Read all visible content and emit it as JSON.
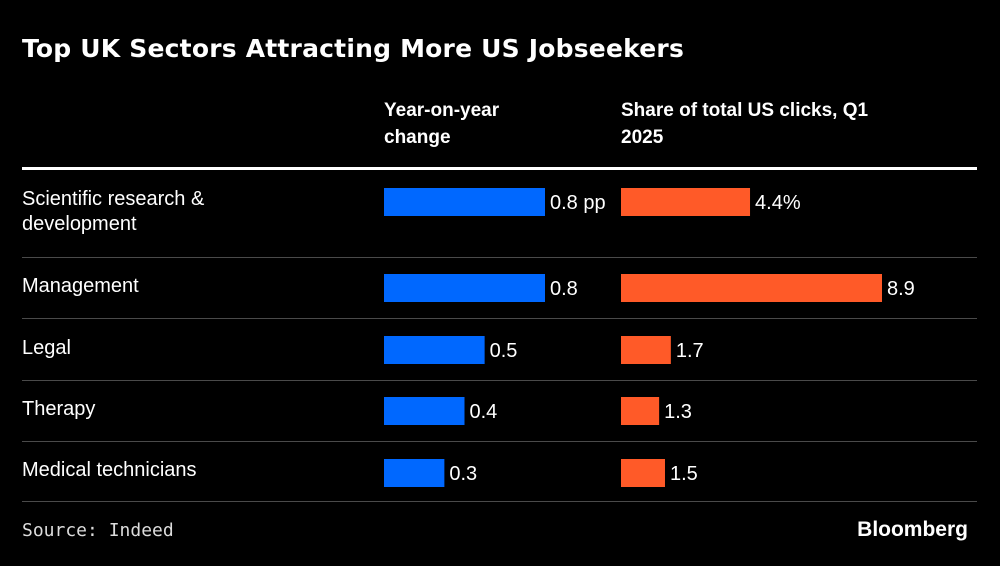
{
  "chart_data": {
    "type": "bar",
    "title": "Top UK Sectors Attracting More US Jobseekers",
    "categories": [
      "Scientific research & development",
      "Management",
      "Legal",
      "Therapy",
      "Medical technicians"
    ],
    "series": [
      {
        "name": "Year-on-year change",
        "unit": "pp",
        "color": "#0068ff",
        "values": [
          0.8,
          0.8,
          0.5,
          0.4,
          0.3
        ],
        "labels": [
          "0.8 pp",
          "0.8",
          "0.5",
          "0.4",
          "0.3"
        ]
      },
      {
        "name": "Share of total US clicks, Q1 2025",
        "unit": "%",
        "color": "#ff5a28",
        "values": [
          4.4,
          8.9,
          1.7,
          1.3,
          1.5
        ],
        "labels": [
          "4.4%",
          "8.9",
          "1.7",
          "1.3",
          "1.5"
        ]
      }
    ],
    "xlabel": "",
    "ylabel": "",
    "grid": false,
    "legend": "column-headers-top"
  },
  "header": {
    "col1_line1": "Year-on-year",
    "col1_line2": "change",
    "col2_line1": "Share of total US clicks, Q1",
    "col2_line2": "2025"
  },
  "rows": [
    {
      "line1": "Scientific research &",
      "line2": "development"
    },
    {
      "line1": "Management",
      "line2": ""
    },
    {
      "line1": "Legal",
      "line2": ""
    },
    {
      "line1": "Therapy",
      "line2": ""
    },
    {
      "line1": "Medical technicians",
      "line2": ""
    }
  ],
  "footer": {
    "source": "Source: Indeed",
    "brand": "Bloomberg"
  }
}
